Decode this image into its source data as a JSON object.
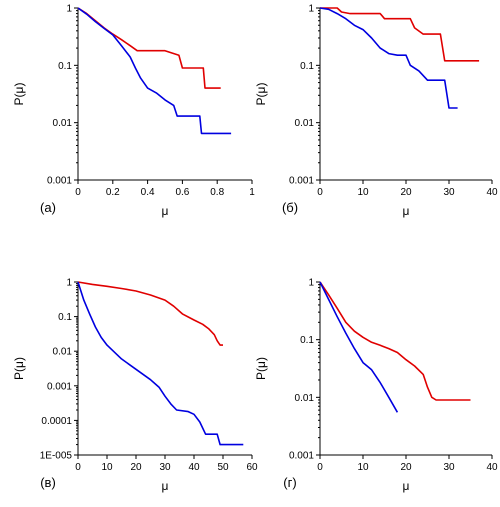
{
  "chart_data": [
    {
      "type": "line",
      "panel_label": "(а)",
      "xlabel": "μ",
      "ylabel": "P(μ)",
      "yscale": "log",
      "xlim": [
        0,
        1
      ],
      "ylim": [
        0.001,
        1
      ],
      "xticks": [
        "0",
        "0.2",
        "0.4",
        "0.6",
        "0.8",
        "1"
      ],
      "yticks": [
        "1",
        "0.1",
        "0.01",
        "0.001"
      ],
      "grid": false,
      "series": [
        {
          "color": "#e00000",
          "points": [
            [
              0,
              1
            ],
            [
              0.05,
              0.8
            ],
            [
              0.1,
              0.6
            ],
            [
              0.15,
              0.45
            ],
            [
              0.2,
              0.35
            ],
            [
              0.25,
              0.28
            ],
            [
              0.3,
              0.22
            ],
            [
              0.34,
              0.18
            ],
            [
              0.5,
              0.18
            ],
            [
              0.58,
              0.15
            ],
            [
              0.6,
              0.09
            ],
            [
              0.72,
              0.09
            ],
            [
              0.73,
              0.04
            ],
            [
              0.82,
              0.04
            ]
          ]
        },
        {
          "color": "#0000e0",
          "points": [
            [
              0,
              1
            ],
            [
              0.05,
              0.78
            ],
            [
              0.1,
              0.58
            ],
            [
              0.15,
              0.44
            ],
            [
              0.2,
              0.34
            ],
            [
              0.25,
              0.22
            ],
            [
              0.3,
              0.14
            ],
            [
              0.33,
              0.09
            ],
            [
              0.36,
              0.06
            ],
            [
              0.4,
              0.04
            ],
            [
              0.45,
              0.033
            ],
            [
              0.5,
              0.025
            ],
            [
              0.55,
              0.02
            ],
            [
              0.57,
              0.013
            ],
            [
              0.7,
              0.013
            ],
            [
              0.71,
              0.0065
            ],
            [
              0.88,
              0.0065
            ]
          ]
        }
      ]
    },
    {
      "type": "line",
      "panel_label": "(б)",
      "xlabel": "μ",
      "ylabel": "P(μ)",
      "yscale": "log",
      "xlim": [
        0,
        40
      ],
      "ylim": [
        0.001,
        1
      ],
      "xticks": [
        "0",
        "10",
        "20",
        "30",
        "40"
      ],
      "yticks": [
        "1",
        "0.1",
        "0.01",
        "0.001"
      ],
      "grid": false,
      "series": [
        {
          "color": "#e00000",
          "points": [
            [
              0,
              1
            ],
            [
              4,
              1
            ],
            [
              5,
              0.85
            ],
            [
              7,
              0.8
            ],
            [
              14,
              0.8
            ],
            [
              15,
              0.65
            ],
            [
              21,
              0.65
            ],
            [
              22,
              0.45
            ],
            [
              24,
              0.35
            ],
            [
              28,
              0.35
            ],
            [
              29,
              0.12
            ],
            [
              30,
              0.12
            ],
            [
              37,
              0.12
            ]
          ]
        },
        {
          "color": "#0000e0",
          "points": [
            [
              0,
              1
            ],
            [
              2,
              0.95
            ],
            [
              4,
              0.8
            ],
            [
              6,
              0.65
            ],
            [
              8,
              0.5
            ],
            [
              10,
              0.42
            ],
            [
              12,
              0.3
            ],
            [
              14,
              0.2
            ],
            [
              16,
              0.16
            ],
            [
              18,
              0.15
            ],
            [
              20,
              0.15
            ],
            [
              21,
              0.1
            ],
            [
              23,
              0.08
            ],
            [
              25,
              0.055
            ],
            [
              29,
              0.055
            ],
            [
              30,
              0.018
            ],
            [
              32,
              0.018
            ]
          ]
        }
      ]
    },
    {
      "type": "line",
      "panel_label": "(в)",
      "xlabel": "μ",
      "ylabel": "P(μ)",
      "yscale": "log",
      "xlim": [
        0,
        60
      ],
      "ylim": [
        1e-05,
        1
      ],
      "xticks": [
        "0",
        "10",
        "20",
        "30",
        "40",
        "50",
        "60"
      ],
      "yticks": [
        "1",
        "0.1",
        "0.01",
        "0.001",
        "0.0001",
        "1E-005"
      ],
      "grid": false,
      "series": [
        {
          "color": "#e00000",
          "points": [
            [
              0,
              1
            ],
            [
              5,
              0.85
            ],
            [
              10,
              0.75
            ],
            [
              15,
              0.65
            ],
            [
              20,
              0.55
            ],
            [
              25,
              0.42
            ],
            [
              30,
              0.3
            ],
            [
              33,
              0.2
            ],
            [
              36,
              0.12
            ],
            [
              40,
              0.08
            ],
            [
              43,
              0.06
            ],
            [
              45,
              0.045
            ],
            [
              47,
              0.03
            ],
            [
              48,
              0.02
            ],
            [
              49,
              0.015
            ],
            [
              50,
              0.015
            ]
          ]
        },
        {
          "color": "#0000e0",
          "points": [
            [
              0,
              1
            ],
            [
              2,
              0.3
            ],
            [
              4,
              0.12
            ],
            [
              6,
              0.05
            ],
            [
              8,
              0.025
            ],
            [
              10,
              0.015
            ],
            [
              15,
              0.006
            ],
            [
              20,
              0.003
            ],
            [
              25,
              0.0015
            ],
            [
              28,
              0.0009
            ],
            [
              30,
              0.0005
            ],
            [
              32,
              0.0003
            ],
            [
              34,
              0.0002
            ],
            [
              38,
              0.00018
            ],
            [
              40,
              0.00015
            ],
            [
              42,
              9e-05
            ],
            [
              44,
              4e-05
            ],
            [
              48,
              4e-05
            ],
            [
              49,
              2e-05
            ],
            [
              57,
              2e-05
            ]
          ]
        }
      ]
    },
    {
      "type": "line",
      "panel_label": "(г)",
      "xlabel": "μ",
      "ylabel": "P(μ)",
      "yscale": "log",
      "xlim": [
        0,
        40
      ],
      "ylim": [
        0.001,
        1
      ],
      "xticks": [
        "0",
        "10",
        "20",
        "30",
        "40"
      ],
      "yticks": [
        "1",
        "0.1",
        "0.01",
        "0.001"
      ],
      "grid": false,
      "series": [
        {
          "color": "#e00000",
          "points": [
            [
              0,
              1
            ],
            [
              2,
              0.6
            ],
            [
              4,
              0.35
            ],
            [
              6,
              0.2
            ],
            [
              8,
              0.14
            ],
            [
              10,
              0.11
            ],
            [
              12,
              0.09
            ],
            [
              14,
              0.08
            ],
            [
              16,
              0.07
            ],
            [
              18,
              0.06
            ],
            [
              20,
              0.045
            ],
            [
              22,
              0.035
            ],
            [
              24,
              0.025
            ],
            [
              25,
              0.015
            ],
            [
              26,
              0.01
            ],
            [
              27,
              0.009
            ],
            [
              35,
              0.009
            ]
          ]
        },
        {
          "color": "#0000e0",
          "points": [
            [
              0,
              1
            ],
            [
              2,
              0.5
            ],
            [
              4,
              0.25
            ],
            [
              6,
              0.13
            ],
            [
              8,
              0.07
            ],
            [
              10,
              0.04
            ],
            [
              12,
              0.03
            ],
            [
              14,
              0.018
            ],
            [
              16,
              0.01
            ],
            [
              18,
              0.0055
            ]
          ]
        }
      ]
    }
  ]
}
